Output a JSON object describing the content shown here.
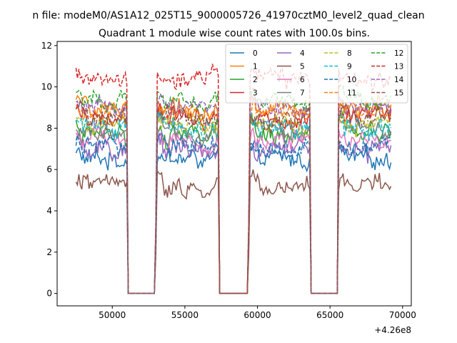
{
  "chart_data": {
    "type": "line",
    "suptitle": "n file: modeM0/AS1A12_025T15_9000005726_41970cztM0_level2_quad_clean",
    "title": "Quadrant 1 module wise count rates with 100.0s bins.",
    "xlabel": "",
    "ylabel": "",
    "x_offset_label": "+4.26e8",
    "xlim": [
      46200,
      70600
    ],
    "ylim": [
      -0.6,
      12.2
    ],
    "xticks": [
      50000,
      55000,
      60000,
      65000,
      70000
    ],
    "xtick_labels": [
      "50000",
      "55000",
      "60000",
      "65000",
      "70000"
    ],
    "yticks": [
      0,
      2,
      4,
      6,
      8,
      10,
      12
    ],
    "ytick_labels": [
      "0",
      "2",
      "4",
      "6",
      "8",
      "10",
      "12"
    ],
    "grid": false,
    "legend_position": "top-right",
    "legend_columns": 4,
    "x_start": 47500,
    "x_step": 100,
    "x_end": 69200,
    "segments": [
      {
        "start": 47500,
        "end": 51000,
        "state": "on"
      },
      {
        "start": 51100,
        "end": 52900,
        "state": "off"
      },
      {
        "start": 53100,
        "end": 57300,
        "state": "on"
      },
      {
        "start": 57400,
        "end": 59300,
        "state": "off"
      },
      {
        "start": 59500,
        "end": 63600,
        "state": "on"
      },
      {
        "start": 63700,
        "end": 65500,
        "state": "off"
      },
      {
        "start": 65600,
        "end": 69200,
        "state": "on"
      }
    ],
    "series": [
      {
        "name": "0",
        "color": "#1f77b4",
        "dash": "solid",
        "mean_level": 6.5
      },
      {
        "name": "1",
        "color": "#ff7f0e",
        "dash": "solid",
        "mean_level": 8.9
      },
      {
        "name": "2",
        "color": "#2ca02c",
        "dash": "solid",
        "mean_level": 7.7
      },
      {
        "name": "3",
        "color": "#d62728",
        "dash": "solid",
        "mean_level": 8.6
      },
      {
        "name": "4",
        "color": "#9467bd",
        "dash": "solid",
        "mean_level": 6.9
      },
      {
        "name": "5",
        "color": "#8c564b",
        "dash": "solid",
        "mean_level": 5.2
      },
      {
        "name": "6",
        "color": "#e377c2",
        "dash": "solid",
        "mean_level": 7.4
      },
      {
        "name": "7",
        "color": "#7f7f7f",
        "dash": "solid",
        "mean_level": 7.9
      },
      {
        "name": "8",
        "color": "#bcbd22",
        "dash": "dashed",
        "mean_level": 8.3
      },
      {
        "name": "9",
        "color": "#17becf",
        "dash": "dashed",
        "mean_level": 8.0
      },
      {
        "name": "10",
        "color": "#1f77b4",
        "dash": "dashed",
        "mean_level": 7.1
      },
      {
        "name": "11",
        "color": "#ff7f0e",
        "dash": "dashed",
        "mean_level": 8.8
      },
      {
        "name": "12",
        "color": "#2ca02c",
        "dash": "dashed",
        "mean_level": 9.3
      },
      {
        "name": "13",
        "color": "#d62728",
        "dash": "dashed",
        "mean_level": 10.3
      },
      {
        "name": "14",
        "color": "#9467bd",
        "dash": "dashed",
        "mean_level": 9.0
      },
      {
        "name": "15",
        "color": "#8c564b",
        "dash": "dashed",
        "mean_level": 8.5
      }
    ]
  }
}
